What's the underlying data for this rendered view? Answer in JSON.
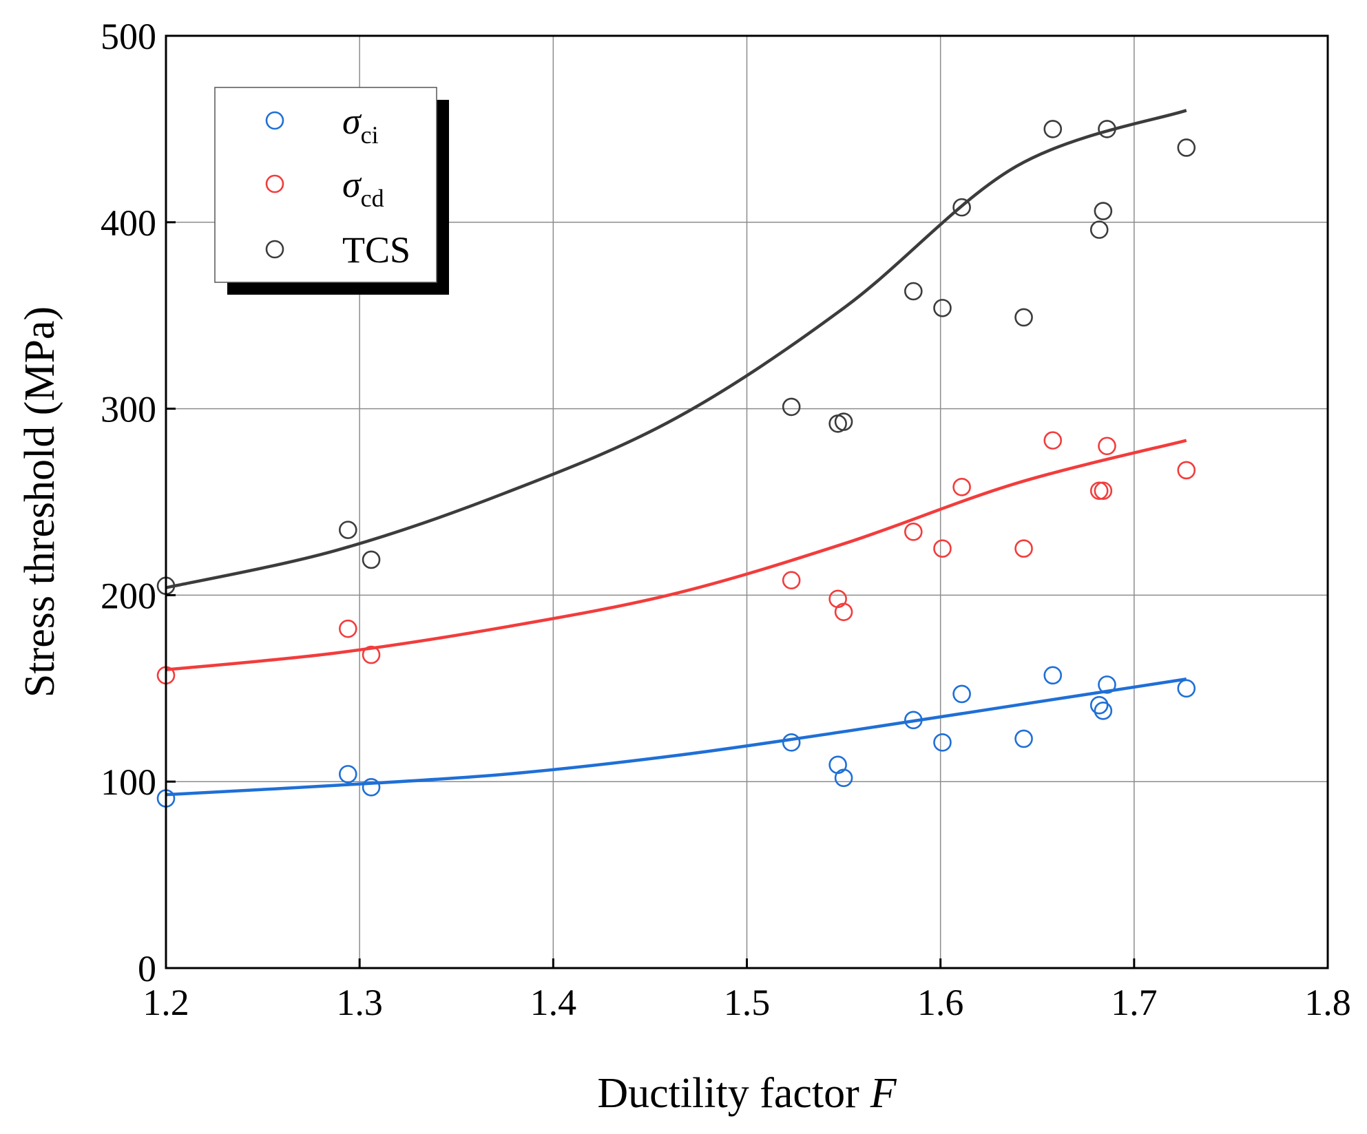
{
  "chart_data": {
    "type": "scatter",
    "xlabel": "Ductility factor",
    "xlabel_italic": "F",
    "ylabel": "Stress threshold (MPa)",
    "xlim": [
      1.2,
      1.8
    ],
    "ylim": [
      0,
      500
    ],
    "xticks": [
      "1.2",
      "1.3",
      "1.4",
      "1.5",
      "1.6",
      "1.7",
      "1.8"
    ],
    "yticks": [
      "0",
      "100",
      "200",
      "300",
      "400",
      "500"
    ],
    "grid": true,
    "legend_position": "top-left",
    "series": [
      {
        "name": "σci",
        "name_symbol": "σ",
        "name_sub": "ci",
        "color": "#1f6fd6",
        "x": [
          1.2,
          1.294,
          1.306,
          1.523,
          1.547,
          1.55,
          1.586,
          1.601,
          1.611,
          1.643,
          1.658,
          1.682,
          1.684,
          1.686,
          1.727
        ],
        "y": [
          91,
          104,
          97,
          121,
          109,
          102,
          133,
          121,
          147,
          123,
          157,
          141,
          138,
          152,
          150
        ],
        "fit": {
          "x_range": [
            1.2,
            1.727
          ],
          "y": [
            93,
            98,
            104,
            114,
            127,
            141,
            155
          ]
        }
      },
      {
        "name": "σcd",
        "name_symbol": "σ",
        "name_sub": "cd",
        "color": "#f23c3c",
        "x": [
          1.2,
          1.294,
          1.306,
          1.523,
          1.547,
          1.55,
          1.586,
          1.601,
          1.611,
          1.643,
          1.658,
          1.682,
          1.684,
          1.686,
          1.727
        ],
        "y": [
          157,
          182,
          168,
          208,
          198,
          191,
          234,
          225,
          258,
          225,
          283,
          256,
          256,
          280,
          267
        ],
        "fit": {
          "x_range": [
            1.2,
            1.727
          ],
          "y": [
            160,
            169,
            183,
            201,
            228,
            260,
            283
          ]
        }
      },
      {
        "name": "TCS",
        "color": "#3c3c3c",
        "x": [
          1.2,
          1.294,
          1.306,
          1.523,
          1.547,
          1.55,
          1.586,
          1.601,
          1.611,
          1.643,
          1.658,
          1.682,
          1.684,
          1.686,
          1.727
        ],
        "y": [
          205,
          235,
          219,
          301,
          292,
          293,
          363,
          354,
          408,
          349,
          450,
          396,
          406,
          450,
          440
        ],
        "fit": {
          "x_range": [
            1.2,
            1.727
          ],
          "y": [
            204,
            224,
            255,
            295,
            355,
            430,
            460
          ]
        }
      }
    ]
  }
}
